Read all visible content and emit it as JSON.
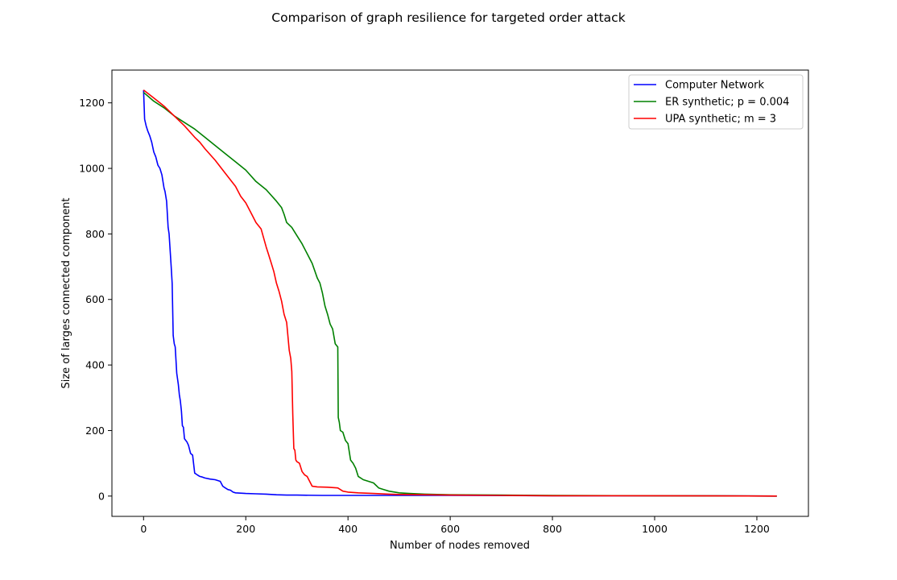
{
  "chart_data": {
    "type": "line",
    "title": "Comparison of graph resilience for targeted order attack",
    "xlabel": "Number of nodes removed",
    "ylabel": "Size of larges connected component",
    "xlim": [
      -61.9,
      1300.9
    ],
    "ylim": [
      -61.9,
      1300
    ],
    "xticks": [
      0,
      200,
      400,
      600,
      800,
      1000,
      1200
    ],
    "yticks": [
      0,
      200,
      400,
      600,
      800,
      1000,
      1200
    ],
    "grid": false,
    "legend_position": "top-right",
    "series": [
      {
        "name": "Computer Network",
        "color": "#0000ff",
        "x": [
          0,
          2,
          5,
          8,
          12,
          16,
          20,
          24,
          28,
          32,
          36,
          40,
          42,
          45,
          48,
          50,
          52,
          54,
          56,
          58,
          60,
          62,
          65,
          68,
          70,
          72,
          74,
          76,
          78,
          80,
          85,
          88,
          92,
          96,
          100,
          105,
          110,
          115,
          120,
          130,
          140,
          150,
          155,
          160,
          165,
          170,
          175,
          180,
          190,
          200,
          220,
          240,
          260,
          280,
          300,
          350,
          400,
          500,
          600,
          800,
          1000,
          1239
        ],
        "y": [
          1239,
          1150,
          1130,
          1115,
          1100,
          1080,
          1050,
          1035,
          1010,
          1000,
          980,
          940,
          930,
          900,
          820,
          800,
          750,
          700,
          650,
          490,
          465,
          455,
          375,
          340,
          310,
          290,
          260,
          215,
          210,
          175,
          165,
          155,
          130,
          125,
          70,
          65,
          60,
          58,
          55,
          52,
          50,
          45,
          30,
          25,
          20,
          18,
          12,
          10,
          9,
          8,
          7,
          6,
          4,
          3,
          3,
          2,
          2,
          2,
          2,
          1,
          1,
          0
        ]
      },
      {
        "name": "ER synthetic; p = 0.004",
        "color": "#008000",
        "x": [
          0,
          20,
          40,
          60,
          80,
          100,
          120,
          140,
          160,
          180,
          200,
          220,
          240,
          260,
          270,
          275,
          280,
          290,
          300,
          310,
          320,
          330,
          340,
          345,
          350,
          355,
          360,
          365,
          370,
          375,
          380,
          381,
          383,
          385,
          390,
          395,
          400,
          405,
          410,
          415,
          420,
          430,
          440,
          450,
          460,
          470,
          480,
          500,
          520,
          550,
          600,
          700,
          800,
          1000,
          1239
        ],
        "y": [
          1232,
          1205,
          1185,
          1160,
          1140,
          1120,
          1095,
          1070,
          1045,
          1020,
          995,
          960,
          935,
          900,
          880,
          860,
          835,
          820,
          795,
          770,
          740,
          710,
          665,
          650,
          620,
          580,
          555,
          525,
          510,
          465,
          455,
          240,
          225,
          200,
          195,
          170,
          160,
          110,
          100,
          85,
          60,
          50,
          45,
          40,
          25,
          20,
          15,
          10,
          8,
          6,
          4,
          3,
          2,
          1,
          0
        ]
      },
      {
        "name": "UPA synthetic; m = 3",
        "color": "#ff0000",
        "x": [
          0,
          20,
          40,
          60,
          80,
          100,
          110,
          120,
          140,
          160,
          180,
          190,
          200,
          210,
          220,
          230,
          240,
          245,
          250,
          255,
          260,
          265,
          270,
          275,
          280,
          285,
          288,
          290,
          292,
          294,
          296,
          298,
          300,
          305,
          310,
          315,
          320,
          330,
          340,
          360,
          380,
          390,
          400,
          420,
          450,
          480,
          500,
          550,
          600,
          700,
          800,
          1000,
          1239
        ],
        "y": [
          1239,
          1215,
          1190,
          1160,
          1130,
          1095,
          1080,
          1060,
          1025,
          985,
          945,
          915,
          895,
          865,
          835,
          815,
          760,
          735,
          710,
          685,
          650,
          625,
          595,
          555,
          530,
          445,
          420,
          380,
          250,
          145,
          140,
          110,
          105,
          100,
          75,
          65,
          60,
          30,
          28,
          27,
          25,
          15,
          12,
          10,
          8,
          6,
          5,
          4,
          3,
          2,
          1,
          1,
          0
        ]
      }
    ]
  }
}
